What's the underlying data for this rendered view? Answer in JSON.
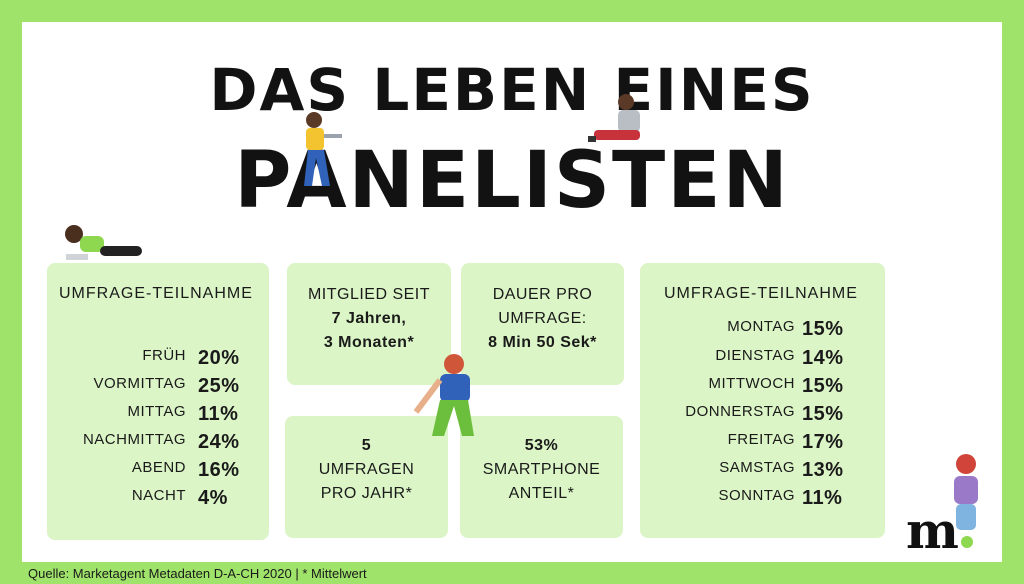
{
  "title": {
    "line1": "DAS LEBEN EINES",
    "line2": "PANELISTEN"
  },
  "left_card": {
    "title": "UMFRAGE-TEILNAHME",
    "rows": [
      {
        "label": "FRÜH",
        "value": "20%"
      },
      {
        "label": "VORMITTAG",
        "value": "25%"
      },
      {
        "label": "MITTAG",
        "value": "11%"
      },
      {
        "label": "NACHMITTAG",
        "value": "24%"
      },
      {
        "label": "ABEND",
        "value": "16%"
      },
      {
        "label": "NACHT",
        "value": "4%"
      }
    ]
  },
  "member_card": {
    "line1": "MITGLIED SEIT",
    "line2": "7 Jahren,",
    "line3": "3 Monaten*"
  },
  "duration_card": {
    "line1": "DAUER PRO",
    "line2": "UMFRAGE:",
    "line3": "8 Min 50 Sek*"
  },
  "surveys_card": {
    "line1": "5",
    "line2": "UMFRAGEN",
    "line3": "PRO JAHR*"
  },
  "smartphone_card": {
    "line1": "53%",
    "line2": "SMARTPHONE",
    "line3": "ANTEIL*"
  },
  "right_card": {
    "title": "UMFRAGE-TEILNAHME",
    "rows": [
      {
        "label": "MONTAG",
        "value": "15%"
      },
      {
        "label": "DIENSTAG",
        "value": "14%"
      },
      {
        "label": "MITTWOCH",
        "value": "15%"
      },
      {
        "label": "DONNERSTAG",
        "value": "15%"
      },
      {
        "label": "FREITAG",
        "value": "17%"
      },
      {
        "label": "SAMSTAG",
        "value": "13%"
      },
      {
        "label": "SONNTAG",
        "value": "11%"
      }
    ]
  },
  "footer": "Quelle: Marketagent Metadaten D-A-CH 2020 | * Mittelwert",
  "logo": "m",
  "colors": {
    "frame": "#9fe36a",
    "card": "#dbf5c6",
    "text": "#121212",
    "accent": "#8ed84f"
  }
}
